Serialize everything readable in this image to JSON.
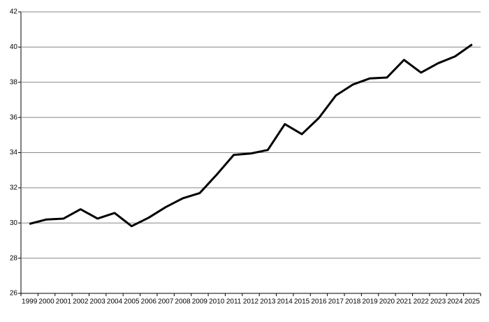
{
  "chart_data": {
    "type": "line",
    "categories": [
      "1999",
      "2000",
      "2001",
      "2002",
      "2003",
      "2004",
      "2005",
      "2006",
      "2007",
      "2008",
      "2009",
      "2010",
      "2011",
      "2012",
      "2013",
      "2014",
      "2015",
      "2016",
      "2017",
      "2018",
      "2019",
      "2020",
      "2021",
      "2022",
      "2023",
      "2024",
      "2025"
    ],
    "values": [
      29.95,
      30.2,
      30.25,
      30.78,
      30.25,
      30.57,
      29.82,
      30.3,
      30.9,
      31.4,
      31.7,
      32.75,
      33.87,
      33.95,
      34.15,
      35.62,
      35.05,
      35.97,
      37.25,
      37.87,
      38.22,
      38.27,
      39.27,
      38.55,
      39.08,
      39.47,
      40.15
    ],
    "color": "#000000",
    "ylim": [
      26,
      42
    ],
    "yticks": [
      26,
      28,
      30,
      32,
      34,
      36,
      38,
      40,
      42
    ],
    "grid": true
  }
}
